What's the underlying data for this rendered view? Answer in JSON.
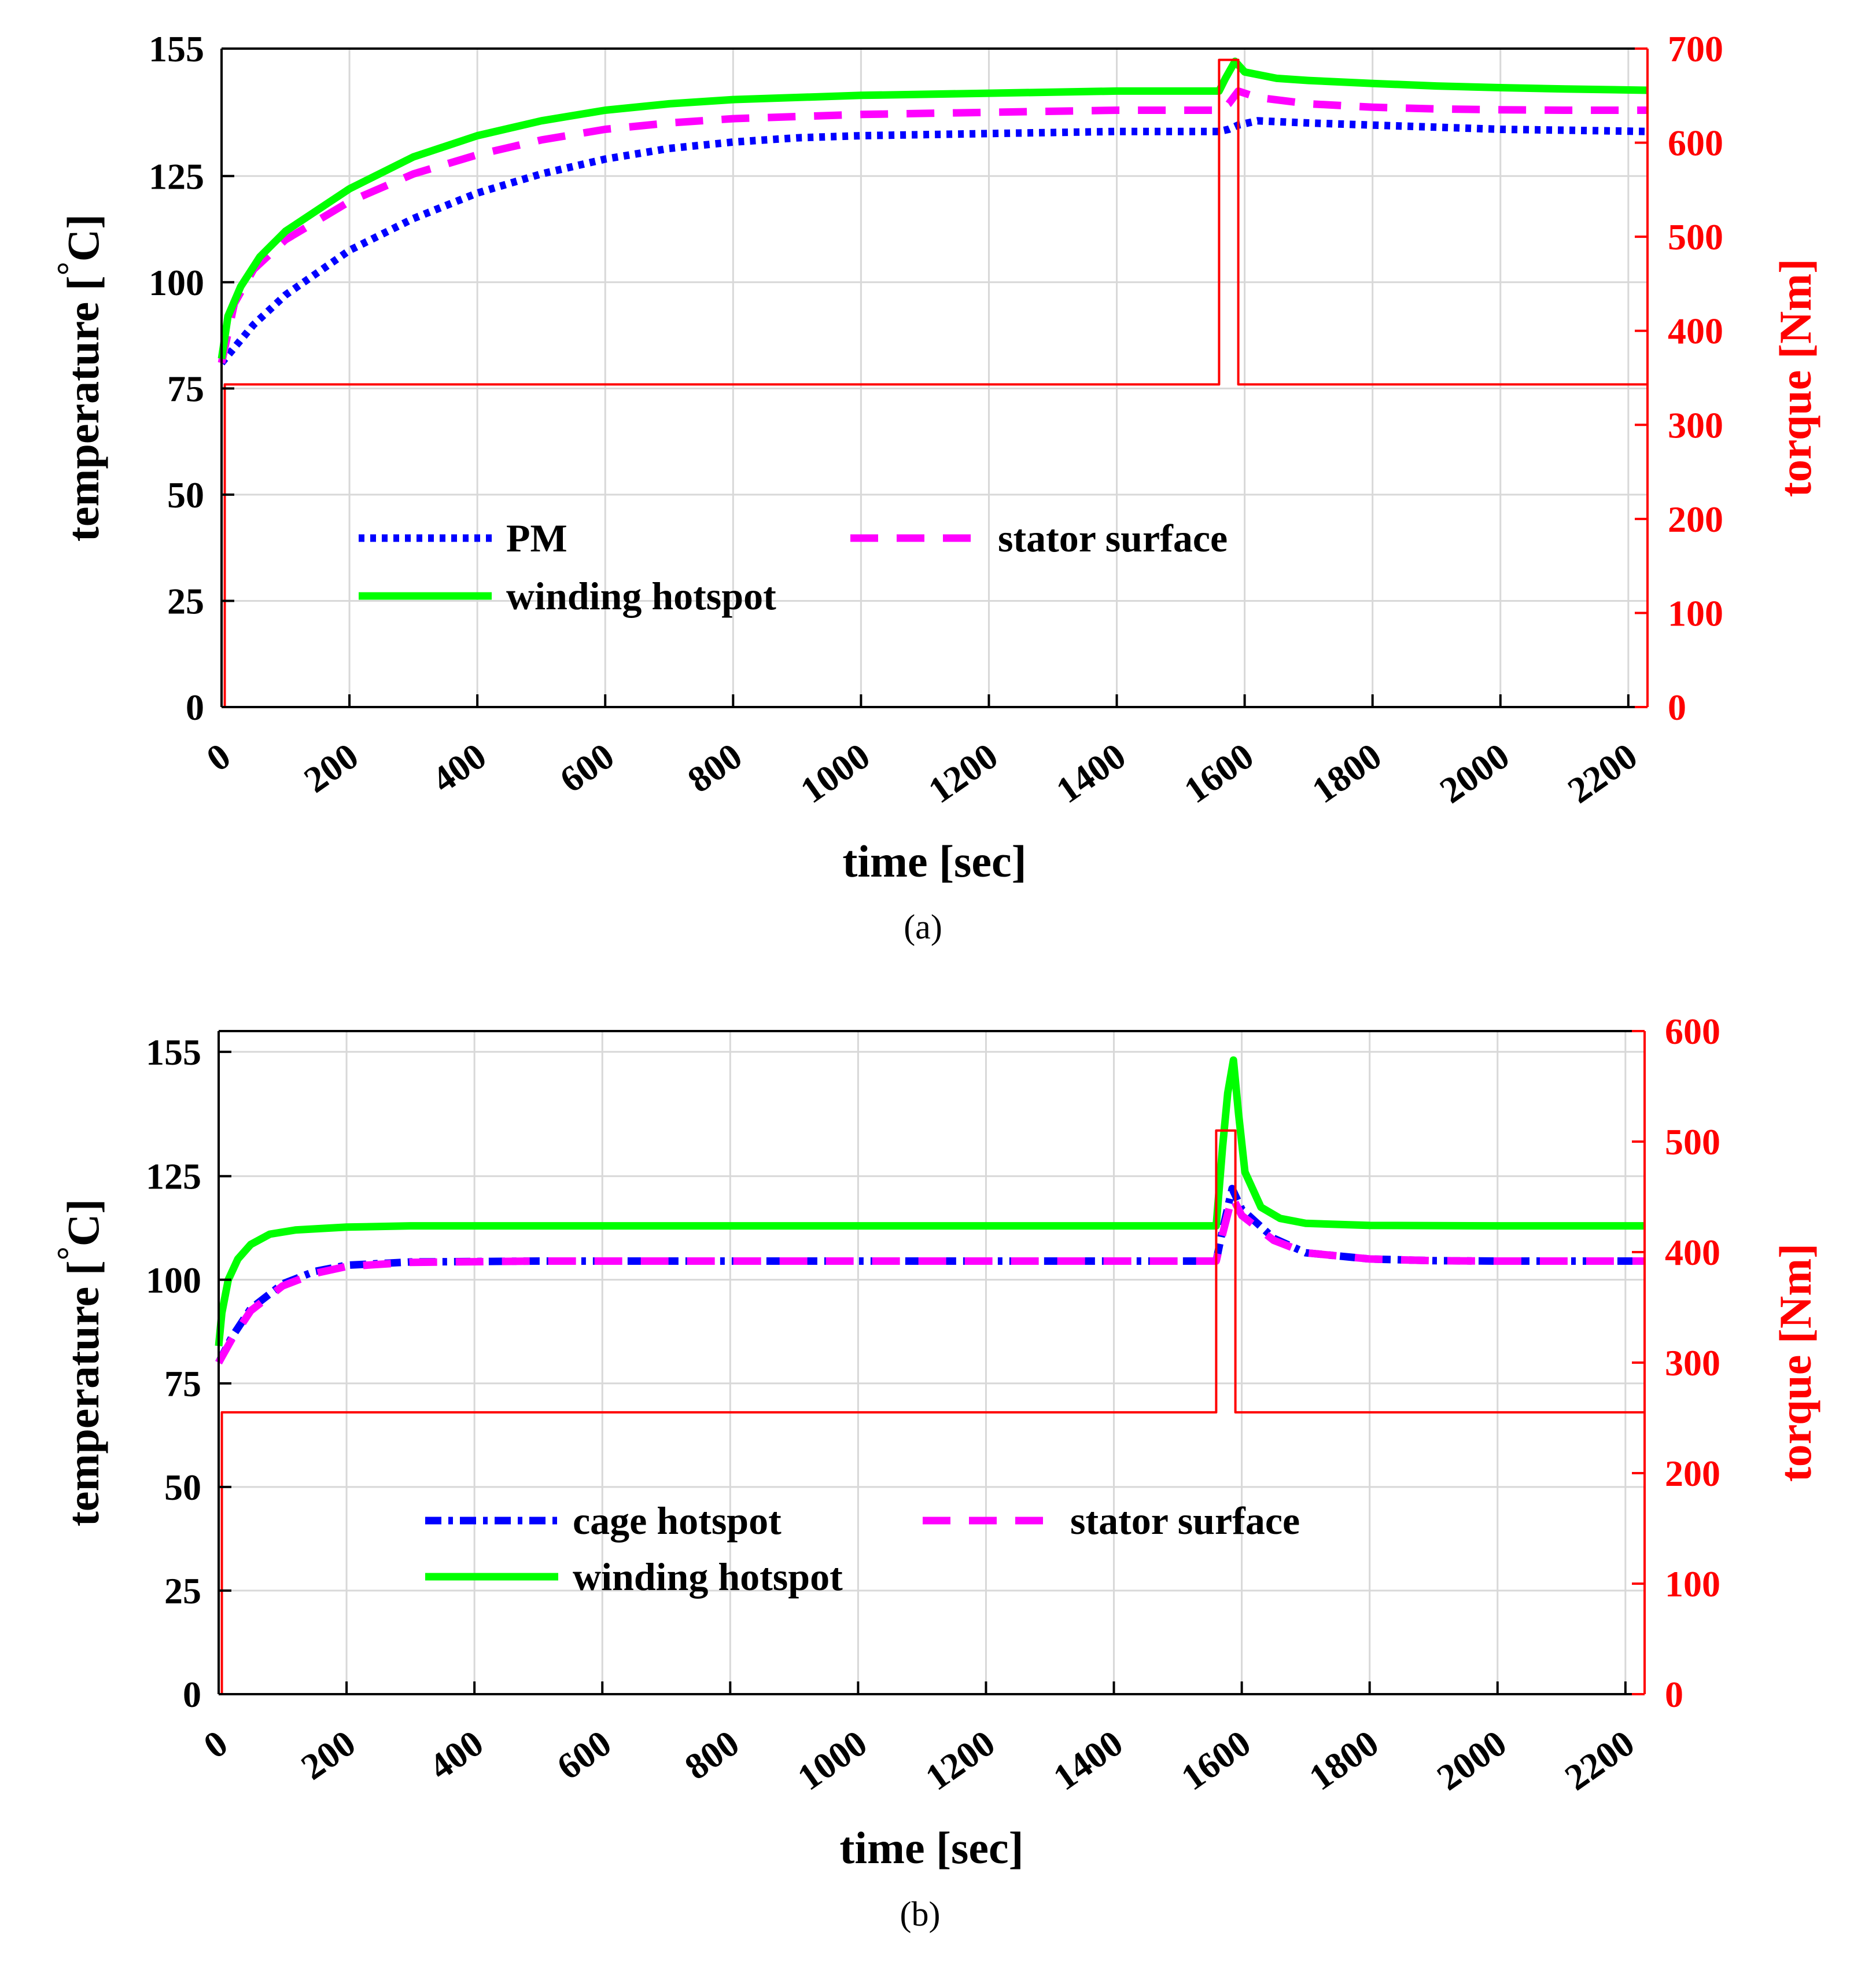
{
  "chart_data": [
    {
      "id": "a",
      "type": "line",
      "caption": "(a)",
      "xlabel": "time [sec]",
      "ylabel": "temperature [",
      "ylabel_deg": "°",
      "ylabel_unit": "C]",
      "y2label": "torque [Nm]",
      "xlim": [
        0,
        2230
      ],
      "ylim": [
        0,
        155
      ],
      "y2lim": [
        0,
        700
      ],
      "xticks": [
        0,
        200,
        400,
        600,
        800,
        1000,
        1200,
        1400,
        1600,
        1800,
        2000,
        2200
      ],
      "yticks": [
        0,
        25,
        50,
        75,
        100,
        125,
        155
      ],
      "y2ticks": [
        0,
        100,
        200,
        300,
        400,
        500,
        600,
        700
      ],
      "grid": true,
      "legend": [
        "PM",
        "stator surface",
        "winding hotspot"
      ],
      "series": [
        {
          "name": "PM",
          "axis": "left",
          "color": "#0000ff",
          "style": "dotted",
          "x": [
            0,
            50,
            100,
            200,
            300,
            400,
            500,
            600,
            700,
            800,
            900,
            1000,
            1200,
            1400,
            1560,
            1575,
            1590,
            1620,
            1700,
            1800,
            1900,
            2000,
            2100,
            2230
          ],
          "y": [
            81,
            90,
            97,
            107.5,
            115,
            121,
            125.5,
            129,
            131.5,
            133,
            134,
            134.5,
            135,
            135.5,
            135.5,
            136,
            137,
            138,
            137.5,
            137,
            136.5,
            136,
            135.8,
            135.5
          ]
        },
        {
          "name": "stator surface",
          "axis": "left",
          "color": "#ff00ff",
          "style": "dashed",
          "x": [
            0,
            20,
            50,
            100,
            200,
            300,
            400,
            500,
            600,
            700,
            800,
            1000,
            1200,
            1400,
            1560,
            1575,
            1590,
            1620,
            1700,
            1800,
            1900,
            2000,
            2100,
            2230
          ],
          "y": [
            81,
            95,
            103,
            110,
            119,
            125.5,
            130,
            133.5,
            136,
            137.5,
            138.5,
            139.5,
            140,
            140.5,
            140.5,
            142,
            145,
            143.5,
            142,
            141.2,
            140.8,
            140.6,
            140.5,
            140.5
          ]
        },
        {
          "name": "winding hotspot",
          "axis": "left",
          "color": "#00ff00",
          "style": "solid",
          "x": [
            0,
            10,
            30,
            60,
            100,
            200,
            300,
            400,
            500,
            600,
            700,
            800,
            1000,
            1200,
            1400,
            1560,
            1570,
            1585,
            1600,
            1650,
            1700,
            1800,
            1900,
            2000,
            2100,
            2230
          ],
          "y": [
            82,
            92,
            99,
            106,
            112,
            122,
            129.5,
            134.5,
            138,
            140.5,
            142,
            143,
            144,
            144.5,
            145,
            145,
            148,
            152,
            149.5,
            148,
            147.5,
            146.8,
            146.2,
            145.8,
            145.5,
            145.2
          ]
        },
        {
          "name": "torque",
          "axis": "right",
          "color": "#ff0000",
          "style": "solid",
          "x": [
            0,
            0,
            5,
            5,
            1560,
            1560,
            1590,
            1590,
            2230
          ],
          "y": [
            0,
            0,
            0,
            343,
            343,
            688,
            688,
            343,
            343
          ]
        }
      ]
    },
    {
      "id": "b",
      "type": "line",
      "caption": "(b)",
      "xlabel": "time [sec]",
      "ylabel": "temperature [",
      "ylabel_deg": "°",
      "ylabel_unit": "C]",
      "y2label": "torque [Nm]",
      "xlim": [
        0,
        2230
      ],
      "ylim": [
        0,
        160
      ],
      "y2lim": [
        0,
        600
      ],
      "xticks": [
        0,
        200,
        400,
        600,
        800,
        1000,
        1200,
        1400,
        1600,
        1800,
        2000,
        2200
      ],
      "yticks": [
        0,
        25,
        50,
        75,
        100,
        125,
        155
      ],
      "y2ticks": [
        0,
        100,
        200,
        300,
        400,
        500,
        600
      ],
      "grid": true,
      "legend": [
        "cage hotspot",
        "stator surface",
        "winding hotspot"
      ],
      "series": [
        {
          "name": "cage hotspot",
          "axis": "left",
          "color": "#0000ff",
          "style": "dashdot",
          "x": [
            0,
            20,
            50,
            100,
            150,
            200,
            300,
            500,
            1000,
            1400,
            1560,
            1570,
            1585,
            1600,
            1650,
            1700,
            1800,
            1900,
            2000,
            2230
          ],
          "y": [
            80,
            86,
            93,
            99,
            102,
            103.5,
            104.3,
            104.5,
            104.5,
            104.5,
            104.5,
            112,
            122,
            117,
            110,
            106.5,
            105,
            104.6,
            104.5,
            104.5
          ]
        },
        {
          "name": "stator surface",
          "axis": "left",
          "color": "#ff00ff",
          "style": "dashed",
          "x": [
            0,
            20,
            50,
            100,
            150,
            200,
            300,
            500,
            1000,
            1400,
            1560,
            1570,
            1585,
            1600,
            1650,
            1700,
            1800,
            1900,
            2000,
            2230
          ],
          "y": [
            80,
            85.5,
            92.5,
            98.5,
            101.5,
            103.2,
            104.2,
            104.5,
            104.5,
            104.5,
            104.5,
            111,
            120,
            115.5,
            109.5,
            106.5,
            105,
            104.6,
            104.5,
            104.5
          ]
        },
        {
          "name": "winding hotspot",
          "axis": "left",
          "color": "#00ff00",
          "style": "solid",
          "x": [
            0,
            5,
            15,
            30,
            50,
            80,
            120,
            200,
            300,
            500,
            1000,
            1400,
            1560,
            1570,
            1578,
            1587,
            1595,
            1605,
            1630,
            1660,
            1700,
            1800,
            2000,
            2230
          ],
          "y": [
            84,
            92,
            100,
            105,
            108.5,
            111,
            112,
            112.7,
            113,
            113,
            113,
            113,
            113,
            132,
            145,
            153,
            140,
            126,
            117.5,
            114.8,
            113.6,
            113.1,
            113,
            113
          ]
        },
        {
          "name": "torque",
          "axis": "right",
          "color": "#ff0000",
          "style": "solid",
          "x": [
            0,
            0,
            5,
            5,
            1560,
            1560,
            1590,
            1590,
            2230
          ],
          "y": [
            0,
            0,
            0,
            255,
            255,
            510,
            510,
            255,
            255
          ]
        }
      ]
    }
  ]
}
